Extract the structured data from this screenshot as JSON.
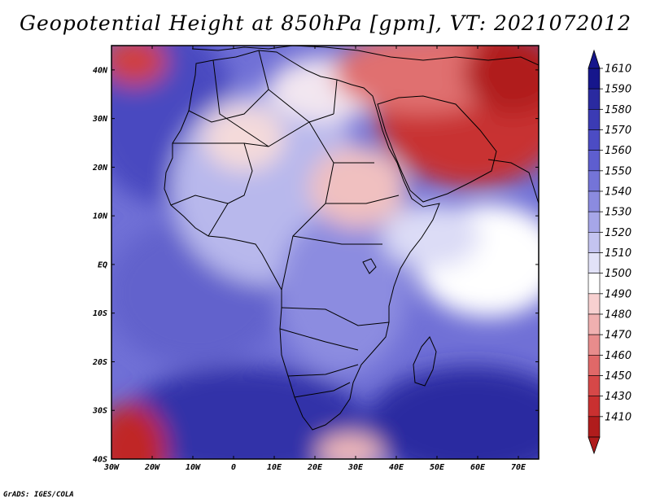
{
  "title": "Geopotential Height at 850hPa [gpm], VT: 2021072012",
  "credit": "GrADS: IGES/COLA",
  "lat_labels": [
    "40N",
    "30N",
    "20N",
    "10N",
    "EQ",
    "10S",
    "20S",
    "30S",
    "40S"
  ],
  "lon_labels": [
    "30W",
    "20W",
    "10W",
    "0",
    "10E",
    "20E",
    "30E",
    "40E",
    "50E",
    "60E",
    "70E"
  ],
  "colorbar": {
    "labels": [
      "1610",
      "1590",
      "1580",
      "1570",
      "1560",
      "1550",
      "1540",
      "1530",
      "1520",
      "1510",
      "1500",
      "1490",
      "1480",
      "1470",
      "1460",
      "1450",
      "1430",
      "1410"
    ],
    "colors": [
      "#16168c",
      "#2a2aa0",
      "#3b3bb4",
      "#4c4cc4",
      "#5e5ecf",
      "#7474d8",
      "#8b8be0",
      "#a6a6e8",
      "#c4c4f0",
      "#e2e2f8",
      "#ffffff",
      "#f7d0d0",
      "#f0b0b0",
      "#e88c8c",
      "#e06868",
      "#d64848",
      "#c93030",
      "#b01c1c"
    ]
  },
  "colors": {
    "frame": "#000000",
    "background": "#ffffff"
  }
}
